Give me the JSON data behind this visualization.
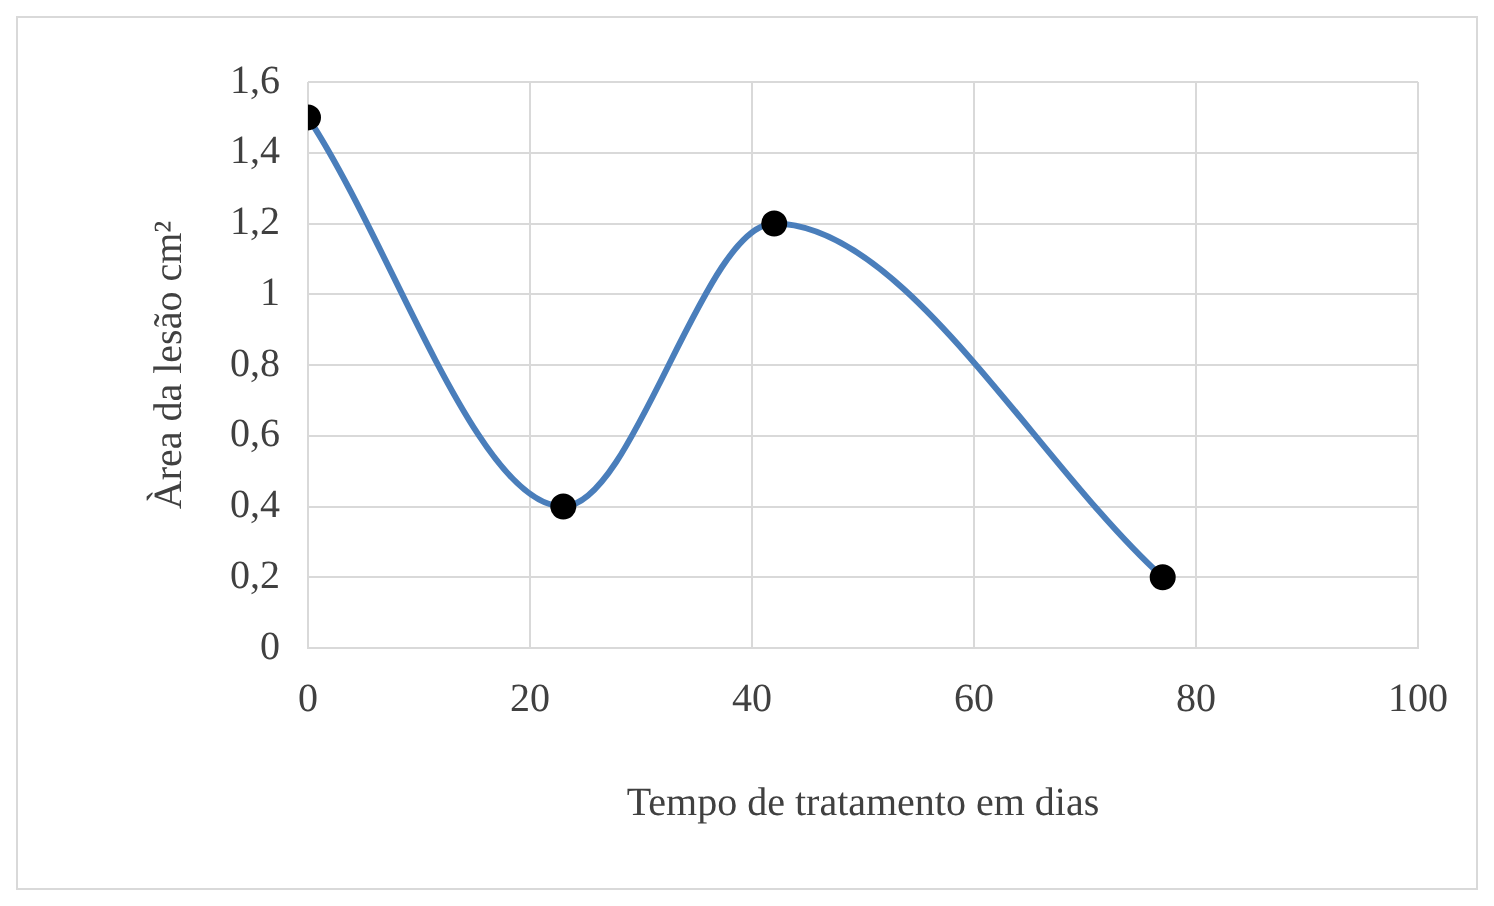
{
  "chart_data": {
    "type": "line",
    "xlabel": "Tempo de tratamento em dias",
    "ylabel": "Àrea da lesão cm²",
    "x": [
      0,
      23,
      42,
      77
    ],
    "series": [
      {
        "color": "#4a7ebb",
        "values": [
          1.5,
          0.4,
          1.2,
          0.2
        ]
      }
    ],
    "xlim": [
      0,
      100
    ],
    "xticks": [
      0,
      20,
      40,
      60,
      80,
      100
    ],
    "ylim": [
      0,
      1.6
    ],
    "yticks": [
      0,
      {
        "value": 0.2,
        "label": "0,2"
      },
      {
        "value": 0.4,
        "label": "0,4"
      },
      {
        "value": 0.6,
        "label": "0,6"
      },
      {
        "value": 0.8,
        "label": "0,8"
      },
      1,
      {
        "value": 1.2,
        "label": "1,2"
      },
      {
        "value": 1.4,
        "label": "1,4"
      },
      {
        "value": 1.6,
        "label": "1,6"
      }
    ],
    "grid": true,
    "legend": false,
    "marker": "circle",
    "line_style": "solid"
  }
}
